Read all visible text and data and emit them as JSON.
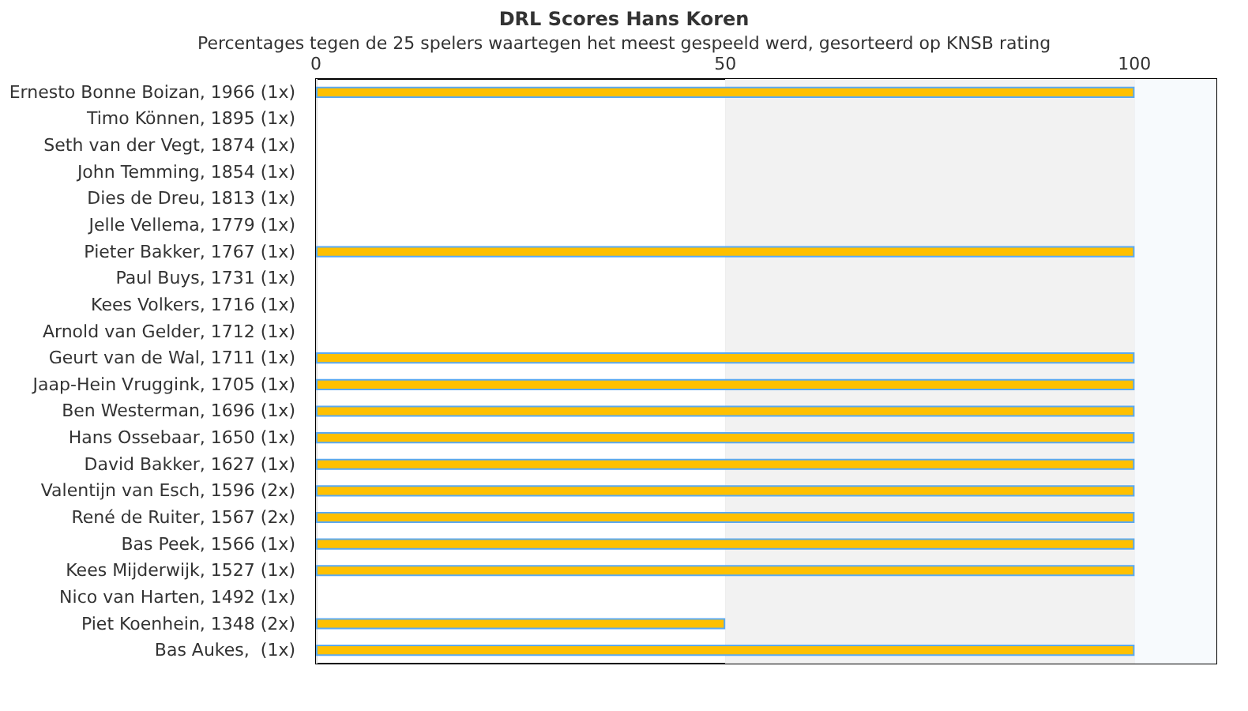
{
  "chart_data": {
    "type": "bar",
    "orientation": "horizontal",
    "title": "DRL Scores Hans Koren",
    "subtitle": "Percentages tegen de 25 spelers waartegen het meest gespeeld werd, gesorteerd op KNSB rating",
    "categories": [
      "Ernesto Bonne Boizan, 1966 (1x)",
      "Timo Können, 1895 (1x)",
      "Seth van der Vegt, 1874 (1x)",
      "John Temming, 1854 (1x)",
      "Dies de Dreu, 1813 (1x)",
      "Jelle Vellema, 1779 (1x)",
      "Pieter Bakker, 1767 (1x)",
      "Paul Buys, 1731 (1x)",
      "Kees Volkers, 1716 (1x)",
      "Arnold van Gelder, 1712 (1x)",
      "Geurt van de Wal, 1711 (1x)",
      "Jaap-Hein Vruggink, 1705 (1x)",
      "Ben Westerman, 1696 (1x)",
      "Hans Ossebaar, 1650 (1x)",
      "David Bakker, 1627 (1x)",
      "Valentijn van Esch, 1596 (2x)",
      "René de Ruiter, 1567 (2x)",
      "Bas Peek, 1566 (1x)",
      "Kees Mijderwijk, 1527 (1x)",
      "Nico van Harten, 1492 (1x)",
      "Piet Koenhein, 1348 (2x)",
      "Bas Aukes,  (1x)"
    ],
    "values": [
      100,
      0,
      0,
      0,
      0,
      0,
      100,
      0,
      0,
      0,
      100,
      100,
      100,
      100,
      100,
      100,
      100,
      100,
      100,
      0,
      50,
      100
    ],
    "color": "#ffc000",
    "xlim": [
      0,
      110
    ],
    "xticks": [
      0,
      50,
      100
    ],
    "grid": "x",
    "bands": [
      {
        "axis": "x",
        "from": 50,
        "to": 100,
        "color": "#f2f2f2"
      },
      {
        "axis": "x",
        "from": 100,
        "to": 110,
        "color": "#f7fafd"
      }
    ]
  }
}
